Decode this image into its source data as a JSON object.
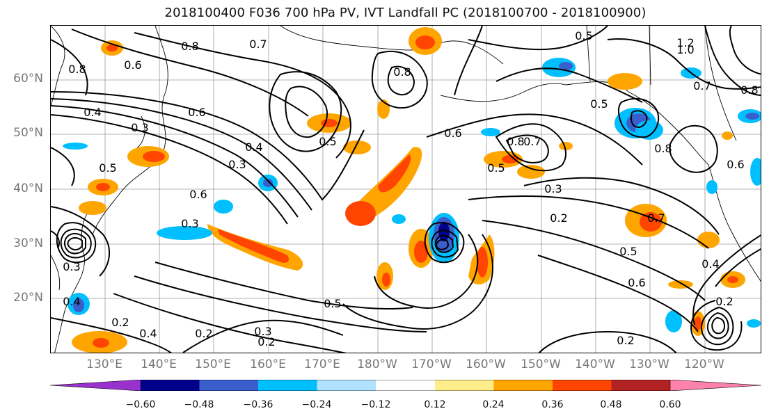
{
  "title": "2018100400 F036 700 hPa PV, IVT Landfall PC (2018100700 - 2018100900)",
  "latitude_labels": [
    "60°N",
    "50°N",
    "40°N",
    "30°N",
    "20°N"
  ],
  "longitude_labels": [
    "130°E",
    "140°E",
    "150°E",
    "160°E",
    "170°E",
    "180°W",
    "170°W",
    "160°W",
    "150°W",
    "140°W",
    "130°W",
    "120°W"
  ],
  "contour_labels": [
    "0.8",
    "0.7",
    "0.6",
    "0.8",
    "0.4",
    "0.3",
    "0.5",
    "0.6",
    "0.4",
    "0.3",
    "0.5",
    "0.6",
    "0.3",
    "0.8",
    "0.8",
    "0.7",
    "0.6",
    "0.5",
    "0.3",
    "0.2",
    "0.5",
    "0.6",
    "0.4",
    "0.2",
    "0.5",
    "0.3",
    "0.2",
    "0.2",
    "0.4",
    "0.7",
    "0.2",
    "0.8",
    "1.2",
    "1.0",
    "0.5",
    "0.8",
    "0.7",
    "0.5",
    "0.6",
    "0.3",
    "0.4",
    "0.2"
  ],
  "colorbar": {
    "colors": [
      "#9932cc",
      "#00008b",
      "#3a5fcd",
      "#00bfff",
      "#b0e2ff",
      "#ffffff",
      "#ffec8b",
      "#ffa500",
      "#ff4500",
      "#b22222",
      "#ff82ab"
    ],
    "tick_labels": [
      "−0.60",
      "−0.48",
      "−0.36",
      "−0.24",
      "−0.12",
      "0.12",
      "0.24",
      "0.36",
      "0.48",
      "0.60"
    ]
  }
}
